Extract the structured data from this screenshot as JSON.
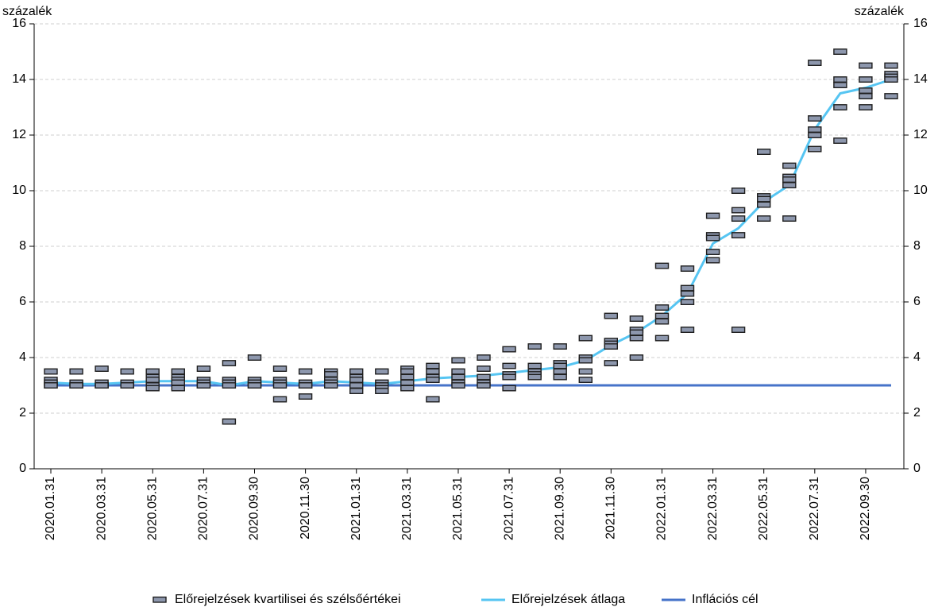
{
  "chart_data": {
    "type": "line",
    "ylabel": "százalék",
    "ylabel_right": "százalék",
    "ylim": [
      0,
      16
    ],
    "yticks": [
      0,
      2,
      4,
      6,
      8,
      10,
      12,
      14,
      16
    ],
    "grid": "horizontal dashed",
    "legend": "bottom",
    "categories": [
      "2020.01.31",
      "2020.02.29",
      "2020.03.31",
      "2020.04.30",
      "2020.05.31",
      "2020.06.30",
      "2020.07.31",
      "2020.08.31",
      "2020.09.30",
      "2020.10.31",
      "2020.11.30",
      "2020.12.31",
      "2021.01.31",
      "2021.02.28",
      "2021.03.31",
      "2021.04.30",
      "2021.05.31",
      "2021.06.30",
      "2021.07.31",
      "2021.08.31",
      "2021.09.30",
      "2021.10.31",
      "2021.11.30",
      "2021.12.31",
      "2022.01.31",
      "2022.02.28",
      "2022.03.31",
      "2022.04.30",
      "2022.05.31",
      "2022.06.30",
      "2022.07.31",
      "2022.08.31",
      "2022.09.30",
      "2022.10.31"
    ],
    "series": [
      {
        "name": "Előrejelzések kvartilisei és szélsőértékei",
        "type": "marker",
        "color": "#8d97ad",
        "stroke": "#1f1f1f",
        "max": [
          3.5,
          3.5,
          3.6,
          3.5,
          3.5,
          3.5,
          3.6,
          3.8,
          4.0,
          3.6,
          3.5,
          3.5,
          3.5,
          3.5,
          3.6,
          3.7,
          3.9,
          4.0,
          4.3,
          4.4,
          4.4,
          4.7,
          5.5,
          5.4,
          7.3,
          7.2,
          9.1,
          10.0,
          11.4,
          10.9,
          14.6,
          15.0,
          14.5,
          14.5
        ],
        "q3": [
          3.2,
          3.1,
          3.1,
          3.1,
          3.3,
          3.3,
          3.2,
          3.2,
          3.2,
          3.2,
          3.1,
          3.4,
          3.3,
          3.1,
          3.5,
          3.5,
          3.5,
          3.6,
          3.7,
          3.7,
          3.8,
          4.0,
          4.6,
          5.0,
          5.8,
          6.5,
          8.4,
          9.3,
          9.8,
          10.5,
          12.6,
          14.0,
          14.0,
          14.2
        ],
        "median": [
          3.1,
          3.0,
          3.0,
          3.0,
          3.2,
          3.2,
          3.1,
          3.1,
          3.1,
          3.1,
          3.0,
          3.2,
          3.2,
          3.0,
          3.3,
          3.3,
          3.3,
          3.3,
          3.4,
          3.5,
          3.7,
          3.9,
          4.5,
          4.9,
          5.5,
          6.3,
          8.3,
          9.0,
          9.7,
          10.4,
          12.2,
          13.8,
          13.6,
          14.1
        ],
        "q1": [
          3.0,
          3.0,
          3.0,
          3.0,
          3.0,
          3.1,
          3.0,
          3.0,
          3.0,
          3.0,
          3.0,
          3.1,
          3.0,
          2.9,
          3.1,
          3.2,
          3.1,
          3.1,
          3.3,
          3.4,
          3.5,
          3.5,
          4.4,
          4.7,
          5.3,
          6.0,
          7.8,
          8.4,
          9.5,
          10.2,
          12.0,
          13.0,
          13.4,
          14.0
        ],
        "min": [
          3.0,
          3.0,
          3.0,
          3.0,
          2.9,
          2.9,
          3.0,
          1.7,
          3.0,
          2.5,
          2.6,
          3.0,
          2.8,
          2.8,
          2.9,
          2.5,
          3.0,
          3.0,
          2.9,
          3.3,
          3.3,
          3.2,
          3.8,
          4.0,
          4.7,
          5.0,
          7.5,
          5.0,
          9.0,
          9.0,
          11.5,
          11.8,
          13.0,
          13.4
        ]
      },
      {
        "name": "Előrejelzések átlaga",
        "type": "line",
        "color": "#56c5f2",
        "values": [
          3.1,
          3.05,
          3.05,
          3.1,
          3.15,
          3.15,
          3.15,
          3.0,
          3.15,
          3.1,
          3.05,
          3.15,
          3.1,
          3.05,
          3.15,
          3.25,
          3.3,
          3.35,
          3.45,
          3.55,
          3.65,
          3.9,
          4.45,
          4.9,
          5.5,
          6.3,
          8.1,
          8.65,
          9.6,
          10.2,
          12.2,
          13.5,
          13.7,
          14.0
        ]
      },
      {
        "name": "Inflációs cél",
        "type": "line",
        "color": "#4673c9",
        "values": [
          3,
          3,
          3,
          3,
          3,
          3,
          3,
          3,
          3,
          3,
          3,
          3,
          3,
          3,
          3,
          3,
          3,
          3,
          3,
          3,
          3,
          3,
          3,
          3,
          3,
          3,
          3,
          3,
          3,
          3,
          3,
          3,
          3,
          3
        ]
      }
    ]
  }
}
